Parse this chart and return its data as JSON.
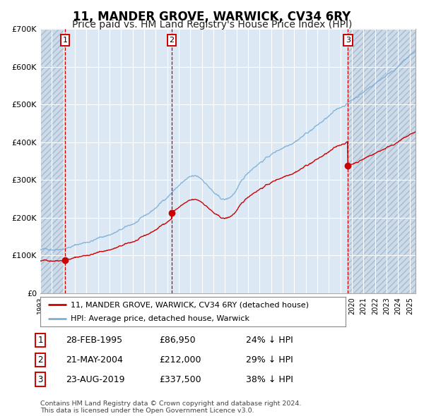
{
  "title": "11, MANDER GROVE, WARWICK, CV34 6RY",
  "subtitle": "Price paid vs. HM Land Registry's House Price Index (HPI)",
  "title_fontsize": 12,
  "subtitle_fontsize": 10,
  "background_color": "#ffffff",
  "plot_bg_color": "#dce9f5",
  "grid_color": "#ffffff",
  "purchases": [
    {
      "date_num": 1995.15,
      "price": 86950,
      "label": "1"
    },
    {
      "date_num": 2004.38,
      "price": 212000,
      "label": "2"
    },
    {
      "date_num": 2019.64,
      "price": 337500,
      "label": "3"
    }
  ],
  "purchase_marker_color": "#cc0000",
  "vline_color": "#cc0000",
  "hpi_line_color": "#7bafd4",
  "price_line_color": "#cc0000",
  "legend_entries": [
    "11, MANDER GROVE, WARWICK, CV34 6RY (detached house)",
    "HPI: Average price, detached house, Warwick"
  ],
  "table_rows": [
    {
      "num": "1",
      "date": "28-FEB-1995",
      "price": "£86,950",
      "pct": "24% ↓ HPI"
    },
    {
      "num": "2",
      "date": "21-MAY-2004",
      "price": "£212,000",
      "pct": "29% ↓ HPI"
    },
    {
      "num": "3",
      "date": "23-AUG-2019",
      "price": "£337,500",
      "pct": "38% ↓ HPI"
    }
  ],
  "footer": "Contains HM Land Registry data © Crown copyright and database right 2024.\nThis data is licensed under the Open Government Licence v3.0.",
  "ylim": [
    0,
    700000
  ],
  "xlim_start": 1993.0,
  "xlim_end": 2025.5,
  "yticks": [
    0,
    100000,
    200000,
    300000,
    400000,
    500000,
    600000,
    700000
  ],
  "ytick_labels": [
    "£0",
    "£100K",
    "£200K",
    "£300K",
    "£400K",
    "£500K",
    "£600K",
    "£700K"
  ],
  "xticks": [
    1993,
    1994,
    1995,
    1996,
    1997,
    1998,
    1999,
    2000,
    2001,
    2002,
    2003,
    2004,
    2005,
    2006,
    2007,
    2008,
    2009,
    2010,
    2011,
    2012,
    2013,
    2014,
    2015,
    2016,
    2017,
    2018,
    2019,
    2020,
    2021,
    2022,
    2023,
    2024,
    2025
  ]
}
